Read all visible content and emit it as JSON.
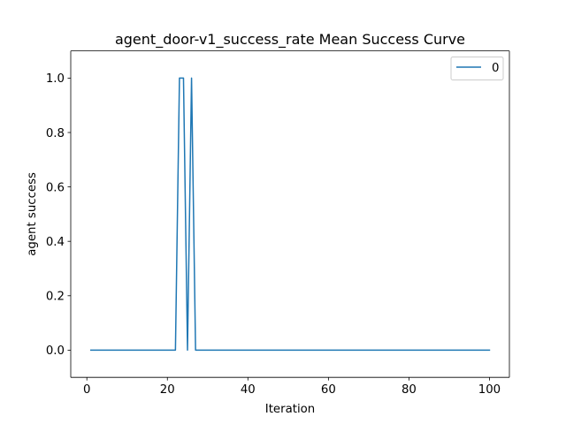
{
  "chart_data": {
    "type": "line",
    "title": "agent_door-v1_success_rate Mean Success Curve",
    "xlabel": "Iteration",
    "ylabel": "agent success",
    "xlim": [
      -4.0,
      104.95
    ],
    "ylim": [
      -0.1,
      1.1
    ],
    "xticks": [
      0,
      20,
      40,
      60,
      80,
      100
    ],
    "yticks": [
      0.0,
      0.2,
      0.4,
      0.6,
      0.8,
      1.0
    ],
    "xtick_labels": [
      "0",
      "20",
      "40",
      "60",
      "80",
      "100"
    ],
    "ytick_labels": [
      "0.0",
      "0.2",
      "0.4",
      "0.6",
      "0.8",
      "1.0"
    ],
    "grid": false,
    "legend_position": "top-right",
    "series": [
      {
        "name": "0",
        "color": "#1f77b4",
        "x": [
          1,
          22,
          23,
          24,
          25,
          26,
          27,
          100
        ],
        "y": [
          0,
          0,
          1,
          1,
          0,
          1,
          0,
          0
        ]
      }
    ]
  }
}
